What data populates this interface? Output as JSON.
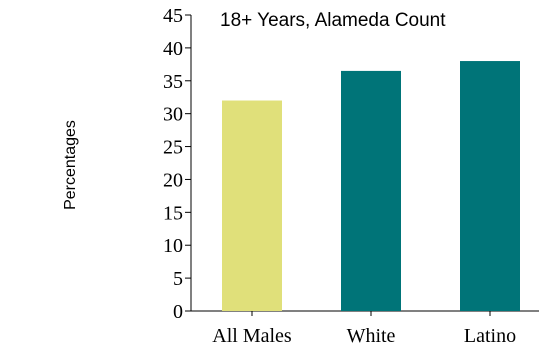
{
  "chart_data": {
    "type": "bar",
    "title": "18+ Years, Alameda Count",
    "xlabel": "",
    "ylabel": "Percentages",
    "ylim": [
      0,
      45
    ],
    "yticks": [
      0,
      5,
      10,
      15,
      20,
      25,
      30,
      35,
      40,
      45
    ],
    "categories": [
      "All Males",
      "White",
      "Latino"
    ],
    "values": [
      32,
      36.5,
      38
    ],
    "colors": [
      "#e0e07a",
      "#007478",
      "#007478"
    ],
    "grid": false,
    "legend": "none"
  }
}
